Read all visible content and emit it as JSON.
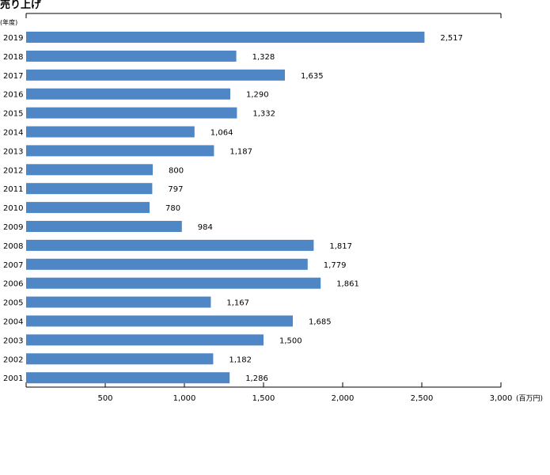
{
  "chart_data": {
    "type": "bar",
    "orientation": "horizontal",
    "title": "売り上げ",
    "ylabel_unit": "(年度)",
    "xlabel_unit": "(百万円)",
    "categories": [
      "2019",
      "2018",
      "2017",
      "2016",
      "2015",
      "2014",
      "2013",
      "2012",
      "2011",
      "2010",
      "2009",
      "2008",
      "2007",
      "2006",
      "2005",
      "2004",
      "2003",
      "2002",
      "2001"
    ],
    "values": [
      2517,
      1328,
      1635,
      1290,
      1332,
      1064,
      1187,
      800,
      797,
      780,
      984,
      1817,
      1779,
      1861,
      1167,
      1685,
      1500,
      1182,
      1286
    ],
    "value_labels": [
      "2,517",
      "1,328",
      "1,635",
      "1,290",
      "1,332",
      "1,064",
      "1,187",
      "800",
      "797",
      "780",
      "984",
      "1,817",
      "1,779",
      "1,861",
      "1,167",
      "1,685",
      "1,500",
      "1,182",
      "1,286"
    ],
    "x_ticks": [
      500,
      1000,
      1500,
      2000,
      2500,
      3000
    ],
    "x_tick_labels": [
      "500",
      "1,000",
      "1,500",
      "2,000",
      "2,500",
      "3,000"
    ],
    "xlim": [
      0,
      3000
    ],
    "grid": false,
    "bar_color": "#4f86c6"
  }
}
